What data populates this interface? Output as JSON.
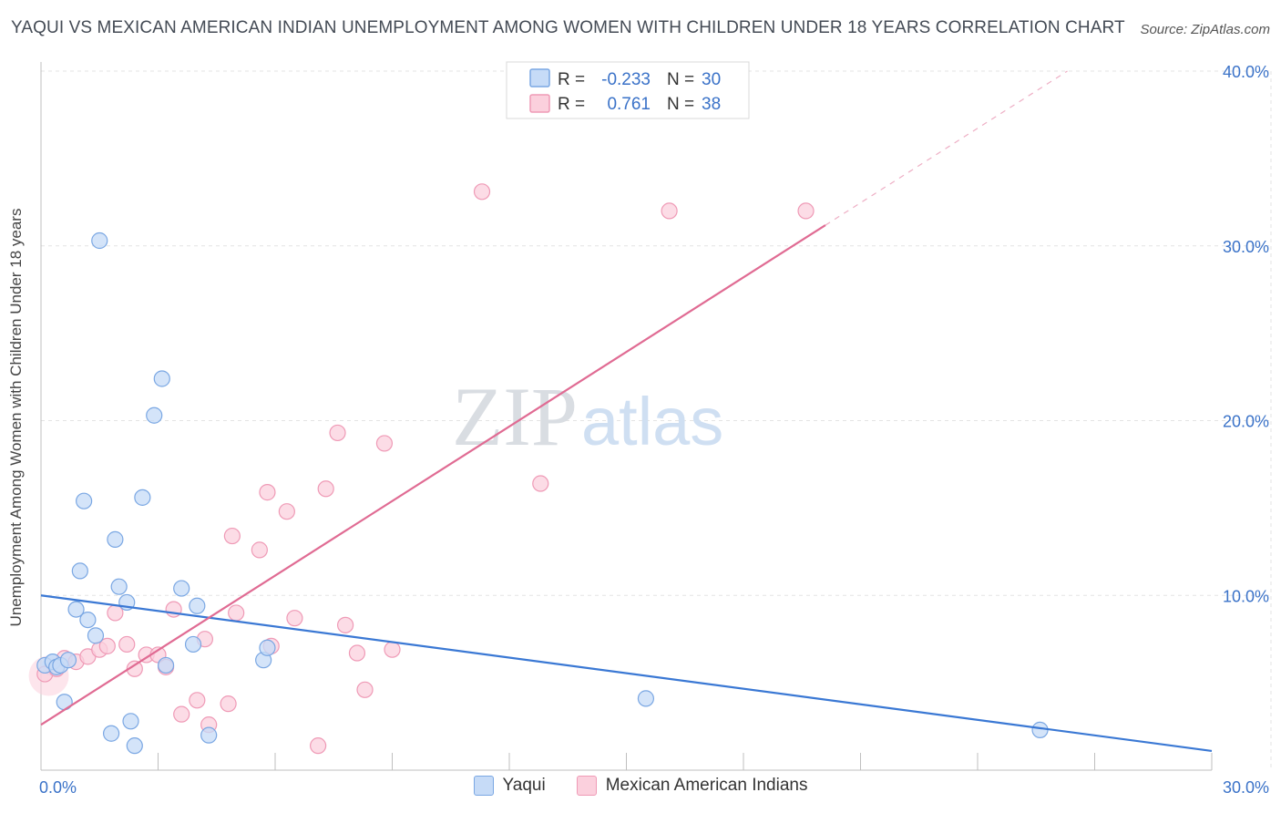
{
  "title": "YAQUI VS MEXICAN AMERICAN INDIAN UNEMPLOYMENT AMONG WOMEN WITH CHILDREN UNDER 18 YEARS CORRELATION CHART",
  "source": "Source: ZipAtlas.com",
  "watermark": {
    "zip": "ZIP",
    "atlas": "atlas"
  },
  "colors": {
    "blue": "#3a78d4",
    "blue_fill": "#c6dbf7",
    "pink": "#e06b93",
    "pink_fill": "#fbd0dd",
    "tick_text": "#3a72c8"
  },
  "legend_top": [
    {
      "r_label": "R =",
      "r_value": "-0.233",
      "n_label": "N =",
      "n_value": "30"
    },
    {
      "r_label": "R =",
      "r_value": "0.761",
      "n_label": "N =",
      "n_value": "38"
    }
  ],
  "chart_data": {
    "type": "scatter",
    "title": "YAQUI VS MEXICAN AMERICAN INDIAN UNEMPLOYMENT AMONG WOMEN WITH CHILDREN UNDER 18 YEARS CORRELATION CHART",
    "xlabel": "",
    "ylabel": "Unemployment Among Women with Children Under 18 years",
    "xlim": [
      0,
      30
    ],
    "ylim": [
      0,
      40
    ],
    "x_tick_labels": [
      "0.0%",
      "30.0%"
    ],
    "y_ticks": [
      10,
      20,
      30,
      40
    ],
    "y_tick_labels": [
      "10.0%",
      "20.0%",
      "30.0%",
      "40.0%"
    ],
    "grid": true,
    "legend": "bottom-center",
    "series": [
      {
        "name": "Yaqui",
        "r": -0.233,
        "n": 30,
        "trend": {
          "x": [
            0,
            30
          ],
          "y": [
            10.0,
            1.1
          ],
          "solid_to": 30
        },
        "points": [
          [
            0.1,
            6.0
          ],
          [
            0.3,
            6.2
          ],
          [
            0.4,
            5.9
          ],
          [
            0.5,
            6.0
          ],
          [
            0.6,
            3.9
          ],
          [
            0.7,
            6.3
          ],
          [
            0.9,
            9.2
          ],
          [
            1.0,
            11.4
          ],
          [
            1.1,
            15.4
          ],
          [
            1.2,
            8.6
          ],
          [
            1.4,
            7.7
          ],
          [
            1.5,
            30.3
          ],
          [
            1.8,
            2.1
          ],
          [
            1.9,
            13.2
          ],
          [
            2.0,
            10.5
          ],
          [
            2.2,
            9.6
          ],
          [
            2.3,
            2.8
          ],
          [
            2.4,
            1.4
          ],
          [
            2.6,
            15.6
          ],
          [
            2.9,
            20.3
          ],
          [
            3.1,
            22.4
          ],
          [
            3.2,
            6.0
          ],
          [
            3.6,
            10.4
          ],
          [
            3.9,
            7.2
          ],
          [
            4.0,
            9.4
          ],
          [
            4.3,
            2.0
          ],
          [
            5.7,
            6.3
          ],
          [
            5.8,
            7.0
          ],
          [
            15.5,
            4.1
          ],
          [
            25.6,
            2.3
          ]
        ]
      },
      {
        "name": "Mexican American Indians",
        "r": 0.761,
        "n": 38,
        "trend": {
          "x": [
            0,
            26.3
          ],
          "y": [
            2.6,
            40.0
          ],
          "solid_to": 20.1
        },
        "points": [
          [
            0.1,
            5.5
          ],
          [
            0.4,
            5.8
          ],
          [
            0.6,
            6.4
          ],
          [
            0.9,
            6.2
          ],
          [
            1.2,
            6.5
          ],
          [
            1.5,
            6.9
          ],
          [
            1.7,
            7.1
          ],
          [
            1.9,
            9.0
          ],
          [
            2.2,
            7.2
          ],
          [
            2.4,
            5.8
          ],
          [
            2.7,
            6.6
          ],
          [
            3.0,
            6.6
          ],
          [
            3.2,
            5.9
          ],
          [
            3.4,
            9.2
          ],
          [
            3.6,
            3.2
          ],
          [
            4.0,
            4.0
          ],
          [
            4.2,
            7.5
          ],
          [
            4.3,
            2.6
          ],
          [
            4.8,
            3.8
          ],
          [
            4.9,
            13.4
          ],
          [
            5.0,
            9.0
          ],
          [
            5.6,
            12.6
          ],
          [
            5.8,
            15.9
          ],
          [
            5.9,
            7.1
          ],
          [
            6.3,
            14.8
          ],
          [
            6.5,
            8.7
          ],
          [
            7.1,
            1.4
          ],
          [
            7.3,
            16.1
          ],
          [
            7.6,
            19.3
          ],
          [
            7.8,
            8.3
          ],
          [
            8.1,
            6.7
          ],
          [
            8.3,
            4.6
          ],
          [
            8.8,
            18.7
          ],
          [
            9.0,
            6.9
          ],
          [
            11.3,
            33.1
          ],
          [
            12.8,
            16.4
          ],
          [
            16.1,
            32.0
          ],
          [
            19.6,
            32.0
          ]
        ]
      }
    ]
  }
}
